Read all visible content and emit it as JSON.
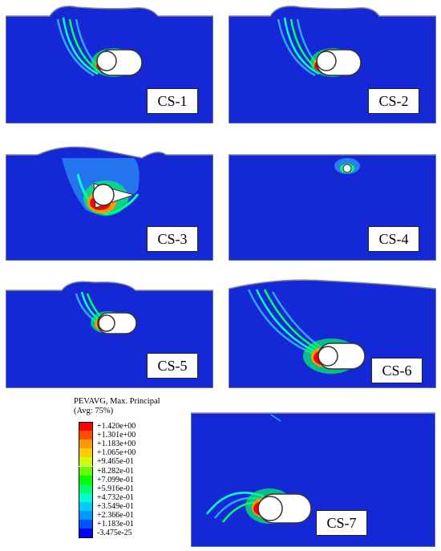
{
  "panels": [
    {
      "id": "cs1",
      "label": "CS-1"
    },
    {
      "id": "cs2",
      "label": "CS-2"
    },
    {
      "id": "cs3",
      "label": "CS-3"
    },
    {
      "id": "cs4",
      "label": "CS-4"
    },
    {
      "id": "cs5",
      "label": "CS-5"
    },
    {
      "id": "cs6",
      "label": "CS-6"
    },
    {
      "id": "cs7",
      "label": "CS-7"
    }
  ],
  "legend": {
    "title_line1": "PEVAVG, Max. Principal",
    "title_line2": "(Avg: 75%)",
    "entries": [
      {
        "value": "+1.420e+00",
        "color": "#ff0000"
      },
      {
        "value": "+1.301e+00",
        "color": "#ff4d00"
      },
      {
        "value": "+1.183e+00",
        "color": "#ff9900"
      },
      {
        "value": "+1.065e+00",
        "color": "#ffcc00"
      },
      {
        "value": "+9.465e-01",
        "color": "#ccff00"
      },
      {
        "value": "+8.282e-01",
        "color": "#66ff00"
      },
      {
        "value": "+7.099e-01",
        "color": "#00ff00"
      },
      {
        "value": "+5.916e-01",
        "color": "#00ff66"
      },
      {
        "value": "+4.732e-01",
        "color": "#00ffcc"
      },
      {
        "value": "+3.549e-01",
        "color": "#00ccff"
      },
      {
        "value": "+2.366e-01",
        "color": "#0099ff"
      },
      {
        "value": "+1.183e-01",
        "color": "#0055ff"
      },
      {
        "value": "-3.475e-25",
        "color": "#0000ff"
      }
    ]
  },
  "colors": {
    "soil": "#1428d6",
    "border": "#7f7f8a"
  }
}
